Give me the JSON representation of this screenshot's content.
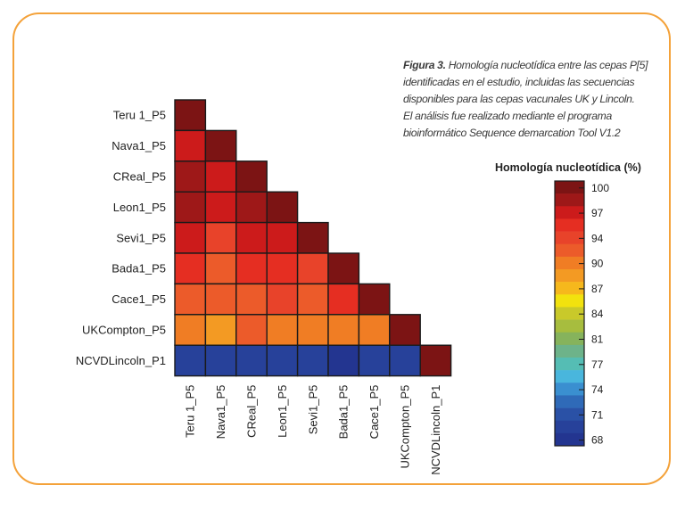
{
  "caption": {
    "lead": "Figura 3.",
    "lines": [
      "Homología nucleotídica entre las cepas P[5]",
      "identificadas en el estudio, incluidas las secuencias",
      "disponibles para las cepas vacunales UK y Lincoln.",
      "El análisis fue realizado mediante el programa",
      "bioinformático Sequence demarcation Tool V1.2"
    ]
  },
  "chart_data": {
    "type": "heatmap",
    "title": "",
    "layout": "lower-triangle",
    "row_labels": [
      "Teru 1_P5",
      "Nava1_P5",
      "CReal_P5",
      "Leon1_P5",
      "Sevi1_P5",
      "Bada1_P5",
      "Cace1_P5",
      "UKCompton_P5",
      "NCVDLincoln_P1"
    ],
    "col_labels": [
      "Teru 1_P5",
      "Nava1_P5",
      "CReal_P5",
      "Leon1_P5",
      "Sevi1_P5",
      "Bada1_P5",
      "Cace1_P5",
      "UKCompton_P5",
      "NCVDLincoln_P1"
    ],
    "values": [
      [
        100
      ],
      [
        96,
        100
      ],
      [
        97,
        96,
        100
      ],
      [
        97,
        96,
        97,
        100
      ],
      [
        96,
        93,
        96,
        96,
        100
      ],
      [
        95,
        91,
        94,
        95,
        93,
        100
      ],
      [
        92,
        91,
        92,
        93,
        92,
        95,
        100
      ],
      [
        90,
        88,
        91,
        90,
        90,
        90,
        90,
        100
      ],
      [
        70,
        70,
        70,
        70,
        69,
        68,
        70,
        70,
        100
      ]
    ],
    "colorbar": {
      "title": "Homología nucleotídica (%)",
      "tick_labels": [
        "100",
        "97",
        "94",
        "90",
        "87",
        "84",
        "81",
        "77",
        "74",
        "71",
        "68"
      ],
      "colors": [
        "#7c1414",
        "#9e1818",
        "#cc1b1b",
        "#e52e22",
        "#e8432a",
        "#ec5b2a",
        "#f07d24",
        "#f39a23",
        "#f6b81c",
        "#f2e20e",
        "#c9c92a",
        "#a7bd3e",
        "#86b35c",
        "#6db38a",
        "#55bdb4",
        "#49b6dd",
        "#3a8fd0",
        "#2f6ab8",
        "#2a51a6",
        "#27419a",
        "#233590"
      ]
    }
  }
}
